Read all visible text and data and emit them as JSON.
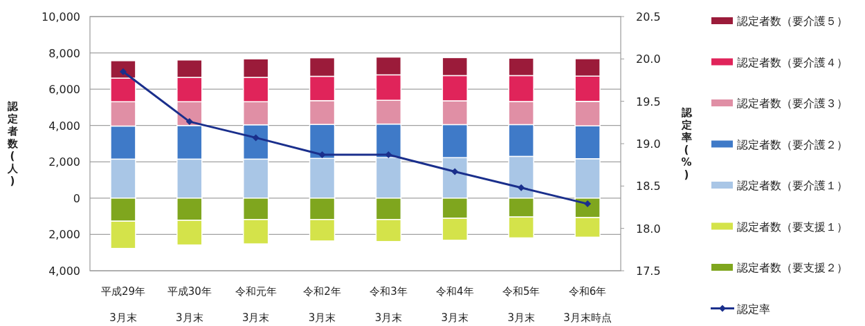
{
  "chart_data": {
    "type": "bar",
    "stacked": true,
    "categories": [
      "平成29年\n3月末",
      "平成30年\n3月末",
      "令和元年\n3月末",
      "令和2年\n3月末",
      "令和3年\n3月末",
      "令和4年\n3月末",
      "令和5年\n3月末",
      "令和6年\n3月末時点"
    ],
    "series": [
      {
        "name": "認定者数（要介護１）",
        "color": "#a9c6e6",
        "values": [
          2150,
          2150,
          2150,
          2190,
          2230,
          2230,
          2300,
          2170
        ]
      },
      {
        "name": "認定者数（要介護２）",
        "color": "#3f7ac8",
        "values": [
          1820,
          1850,
          1890,
          1870,
          1850,
          1820,
          1750,
          1810
        ]
      },
      {
        "name": "認定者数（要介護３）",
        "color": "#e08fa5",
        "values": [
          1340,
          1310,
          1270,
          1310,
          1310,
          1310,
          1270,
          1350
        ]
      },
      {
        "name": "認定者数（要介護４）",
        "color": "#e0245a",
        "values": [
          1300,
          1340,
          1340,
          1340,
          1400,
          1390,
          1430,
          1390
        ]
      },
      {
        "name": "認定者数（要介護５）",
        "color": "#9b1b3a",
        "values": [
          960,
          960,
          1020,
          1020,
          980,
          990,
          960,
          960
        ]
      },
      {
        "name": "認定者数（要支援２）",
        "color": "#7fa61e",
        "values": [
          -1270,
          -1220,
          -1180,
          -1180,
          -1180,
          -1110,
          -1040,
          -1070
        ]
      },
      {
        "name": "認定者数（要支援１）",
        "color": "#d4e34a",
        "values": [
          -1500,
          -1360,
          -1340,
          -1180,
          -1210,
          -1210,
          -1150,
          -1080
        ]
      },
      {
        "name": "認定率",
        "type": "line",
        "axis": "y2",
        "color": "#1a2f8c",
        "values": [
          19.85,
          19.26,
          19.07,
          18.87,
          18.87,
          18.67,
          18.48,
          18.29
        ]
      }
    ],
    "ylabel": "認定者数(人)",
    "y2label": "認定率(%)",
    "ylim": [
      -4000,
      10000
    ],
    "yticks": [
      {
        "value": -4000,
        "label": "4,000"
      },
      {
        "value": -2000,
        "label": "2,000"
      },
      0,
      {
        "value": 2000,
        "label": "2,000"
      },
      {
        "value": 4000,
        "label": "4,000"
      },
      {
        "value": 6000,
        "label": "6,000"
      },
      {
        "value": 8000,
        "label": "8,000"
      },
      {
        "value": 10000,
        "label": "10,000"
      }
    ],
    "y2lim": [
      17.5,
      20.5
    ],
    "y2ticks": [
      {
        "value": 17.5,
        "label": "17.5"
      },
      {
        "value": 18,
        "label": "18.0"
      },
      {
        "value": 18.5,
        "label": "18.5"
      },
      {
        "value": 19,
        "label": "19.0"
      },
      {
        "value": 19.5,
        "label": "19.5"
      },
      {
        "value": 20,
        "label": "20.0"
      },
      {
        "value": 20.5,
        "label": "20.5"
      }
    ],
    "grid": "y",
    "legend": "right",
    "marker": "diamond"
  }
}
